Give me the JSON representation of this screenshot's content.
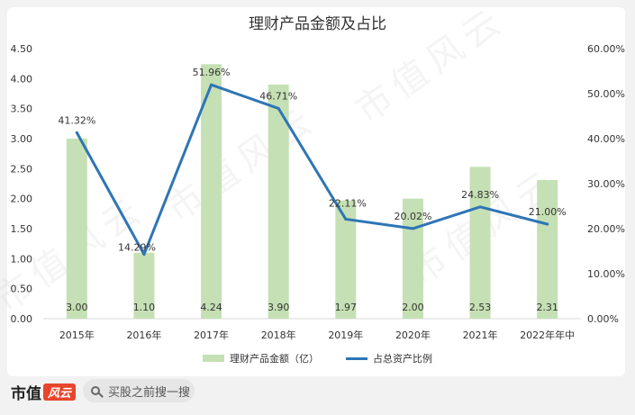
{
  "chart_data": {
    "type": "bar",
    "title": "理财产品金额及占比",
    "categories": [
      "2015年",
      "2016年",
      "2017年",
      "2018年",
      "2019年",
      "2020年",
      "2021年",
      "2022年年中"
    ],
    "series": [
      {
        "name": "理财产品金额（亿）",
        "type": "bar",
        "axis": "left",
        "values": [
          3.0,
          1.1,
          4.24,
          3.9,
          1.97,
          2.0,
          2.53,
          2.31
        ],
        "labels": [
          "3.00",
          "1.10",
          "4.24",
          "3.90",
          "1.97",
          "2.00",
          "2.53",
          "2.31"
        ]
      },
      {
        "name": "占总资产比例",
        "type": "line",
        "axis": "right",
        "values": [
          41.32,
          14.29,
          51.96,
          46.71,
          22.11,
          20.02,
          24.83,
          21.0
        ],
        "labels": [
          "41.32%",
          "14.29%",
          "51.96%",
          "46.71%",
          "22.11%",
          "20.02%",
          "24.83%",
          "21.00%"
        ]
      }
    ],
    "y_left": {
      "range": [
        0,
        4.5
      ],
      "ticks": [
        "0.00",
        "0.50",
        "1.00",
        "1.50",
        "2.00",
        "2.50",
        "3.00",
        "3.50",
        "4.00",
        "4.50"
      ]
    },
    "y_right": {
      "range": [
        0,
        60
      ],
      "ticks": [
        "0.00%",
        "10.00%",
        "20.00%",
        "30.00%",
        "40.00%",
        "50.00%",
        "60.00%"
      ]
    },
    "grid": false,
    "legend_position": "bottom",
    "colors": {
      "bar": "#c5e0b4",
      "line": "#2e75b6"
    }
  },
  "footer": {
    "logo_text": "市值",
    "logo_badge": "风云",
    "search_placeholder": "买股之前搜一搜"
  },
  "watermark": "市值风云"
}
